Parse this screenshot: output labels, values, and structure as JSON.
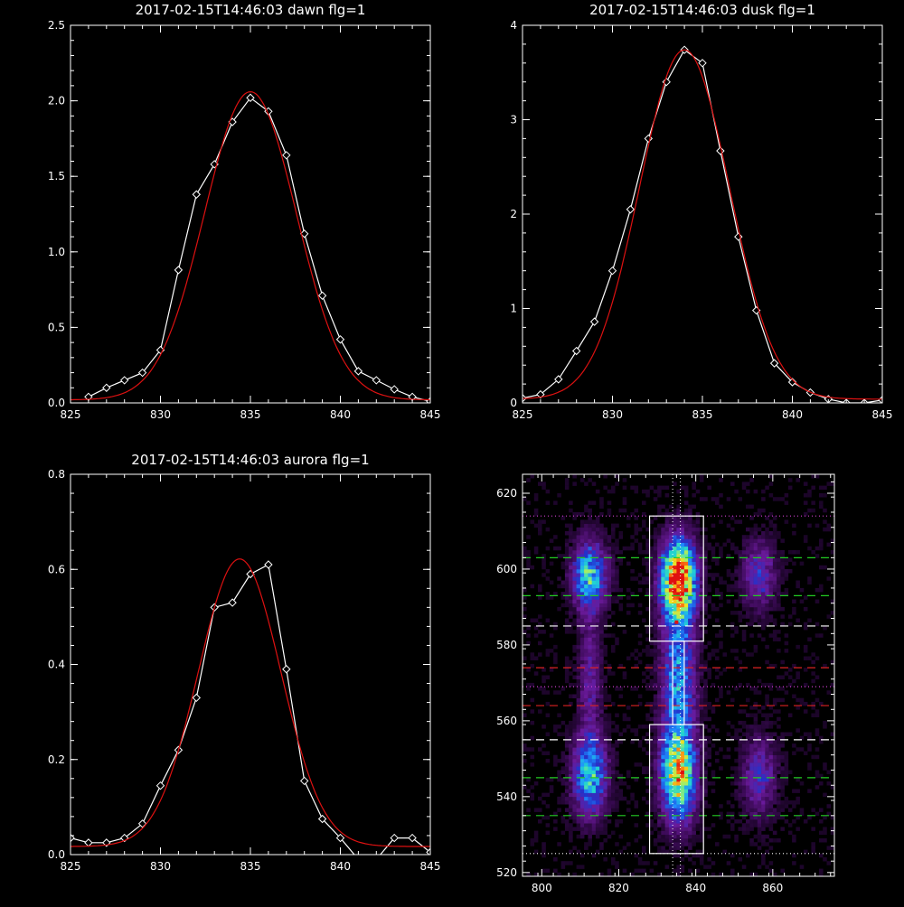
{
  "chart_data": [
    {
      "type": "line",
      "title": "2017-02-15T14:46:03 dawn flg=1",
      "xlim": [
        825,
        845
      ],
      "ylim": [
        0,
        2.5
      ],
      "xticks": [
        825,
        830,
        835,
        840,
        845
      ],
      "yticks": [
        0.0,
        0.5,
        1.0,
        1.5,
        2.0,
        2.5
      ],
      "ytick_decimals": 1,
      "series": [
        {
          "color": "#ffffff",
          "marker": "diamond",
          "x": [
            826,
            827,
            828,
            829,
            830,
            831,
            832,
            833,
            834,
            835,
            836,
            837,
            838,
            839,
            840,
            841,
            842,
            843,
            844,
            845
          ],
          "y": [
            0.04,
            0.1,
            0.15,
            0.2,
            0.35,
            0.88,
            1.38,
            1.58,
            1.86,
            2.02,
            1.93,
            1.64,
            1.12,
            0.71,
            0.42,
            0.21,
            0.15,
            0.09,
            0.04,
            0.01
          ]
        },
        {
          "color": "#dd1111",
          "marker": "none",
          "fit": "gaussian",
          "params": {
            "a": 2.04,
            "mu": 835.0,
            "sigma": 2.55,
            "offset": 0.02
          }
        }
      ]
    },
    {
      "type": "line",
      "title": "2017-02-15T14:46:03 dusk flg=1",
      "xlim": [
        825,
        845
      ],
      "ylim": [
        0,
        4
      ],
      "xticks": [
        825,
        830,
        835,
        840,
        845
      ],
      "yticks": [
        0,
        1,
        2,
        3,
        4
      ],
      "ytick_decimals": 0,
      "series": [
        {
          "color": "#ffffff",
          "marker": "diamond",
          "x": [
            825,
            826,
            827,
            828,
            829,
            830,
            831,
            832,
            833,
            834,
            835,
            836,
            837,
            838,
            839,
            840,
            841,
            842,
            843,
            844,
            845
          ],
          "y": [
            0.05,
            0.09,
            0.25,
            0.55,
            0.86,
            1.4,
            2.05,
            2.8,
            3.4,
            3.74,
            3.6,
            2.67,
            1.76,
            0.98,
            0.42,
            0.22,
            0.11,
            0.04,
            0.0,
            0.0,
            0.03
          ]
        },
        {
          "color": "#dd1111",
          "marker": "none",
          "fit": "gaussian",
          "params": {
            "a": 3.7,
            "mu": 834.0,
            "sigma": 2.5,
            "offset": 0.04
          }
        }
      ]
    },
    {
      "type": "line",
      "title": "2017-02-15T14:46:03 aurora flg=1",
      "xlim": [
        825,
        845
      ],
      "ylim": [
        0,
        0.8
      ],
      "xticks": [
        825,
        830,
        835,
        840,
        845
      ],
      "yticks": [
        0.0,
        0.2,
        0.4,
        0.6,
        0.8
      ],
      "ytick_decimals": 1,
      "series": [
        {
          "color": "#ffffff",
          "marker": "diamond",
          "x": [
            825,
            826,
            827,
            828,
            829,
            830,
            831,
            832,
            833,
            834,
            835,
            836,
            837,
            838,
            839,
            840,
            841,
            842,
            843,
            844,
            845
          ],
          "y": [
            0.035,
            0.025,
            0.025,
            0.035,
            0.065,
            0.145,
            0.22,
            0.33,
            0.52,
            0.53,
            0.59,
            0.61,
            0.39,
            0.155,
            0.075,
            0.035,
            -0.01,
            -0.01,
            0.035,
            0.035,
            0.005
          ]
        },
        {
          "color": "#dd1111",
          "marker": "none",
          "fit": "gaussian",
          "params": {
            "a": 0.605,
            "mu": 834.4,
            "sigma": 2.3,
            "offset": 0.017
          }
        }
      ]
    },
    {
      "type": "heatmap",
      "title": "",
      "xlim": [
        795,
        876
      ],
      "ylim": [
        519,
        625
      ],
      "xticks": [
        800,
        820,
        840,
        860
      ],
      "yticks": [
        520,
        540,
        560,
        580,
        600,
        620
      ],
      "ytick_decimals": 0,
      "colormap": [
        "#000000",
        "#3a0a55",
        "#6a1a9a",
        "#2233cc",
        "#1f8fff",
        "#22d4d0",
        "#8ff07a",
        "#f0e020",
        "#ff7a10",
        "#e01010"
      ],
      "blobs": [
        {
          "x": 812,
          "y": 598,
          "sx": 3,
          "sy": 6,
          "amp": 0.52
        },
        {
          "x": 812,
          "y": 545,
          "sx": 3,
          "sy": 7,
          "amp": 0.5
        },
        {
          "x": 812,
          "y": 571,
          "sx": 2,
          "sy": 12,
          "amp": 0.2
        },
        {
          "x": 856,
          "y": 598,
          "sx": 3,
          "sy": 6,
          "amp": 0.27
        },
        {
          "x": 856,
          "y": 545,
          "sx": 3,
          "sy": 7,
          "amp": 0.26
        },
        {
          "x": 835,
          "y": 597,
          "sx": 3,
          "sy": 7,
          "amp": 0.98
        },
        {
          "x": 835,
          "y": 545,
          "sx": 3,
          "sy": 8,
          "amp": 0.72
        },
        {
          "x": 835,
          "y": 570,
          "sx": 3,
          "sy": 14,
          "amp": 0.42
        }
      ],
      "boxes": [
        {
          "x": [
            828,
            842
          ],
          "y": [
            581,
            614
          ],
          "color": "#ffffff"
        },
        {
          "x": [
            828,
            842
          ],
          "y": [
            525,
            559
          ],
          "color": "#ffffff"
        },
        {
          "x": [
            834,
            837
          ],
          "y": [
            559,
            581
          ],
          "color": "#ffffff"
        }
      ],
      "hlines": [
        {
          "y": 614,
          "color": "#d040d0",
          "style": "dotted"
        },
        {
          "y": 603,
          "color": "#22cc22",
          "style": "dashed"
        },
        {
          "y": 593,
          "color": "#22cc22",
          "style": "dashed"
        },
        {
          "y": 585,
          "color": "#ffffff",
          "style": "dashed"
        },
        {
          "y": 574,
          "color": "#dd2222",
          "style": "dashed"
        },
        {
          "y": 569,
          "color": "#d040d0",
          "style": "dotted"
        },
        {
          "y": 564,
          "color": "#dd2222",
          "style": "dashed"
        },
        {
          "y": 555,
          "color": "#ffffff",
          "style": "dashed"
        },
        {
          "y": 545,
          "color": "#22cc22",
          "style": "dashed"
        },
        {
          "y": 535,
          "color": "#22cc22",
          "style": "dashed"
        },
        {
          "y": 525,
          "color": "#ffffff",
          "style": "dotted"
        }
      ],
      "vlines": [
        {
          "x": 834,
          "color": "#ffffff",
          "style": "dotted"
        },
        {
          "x": 836,
          "color": "#ffffff",
          "style": "dotted"
        }
      ],
      "markers": [
        {
          "x": 834,
          "y": 597,
          "color": "#dd1111"
        },
        {
          "x": 836,
          "y": 592,
          "color": "#dd1111"
        },
        {
          "x": 835,
          "y": 586,
          "color": "#dd1111"
        }
      ]
    }
  ]
}
